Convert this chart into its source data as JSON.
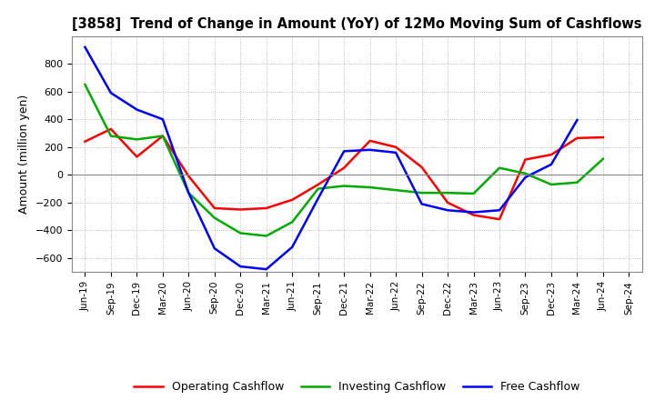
{
  "title": "[3858]  Trend of Change in Amount (YoY) of 12Mo Moving Sum of Cashflows",
  "ylabel": "Amount (million yen)",
  "x_labels": [
    "Jun-19",
    "Sep-19",
    "Dec-19",
    "Mar-20",
    "Jun-20",
    "Sep-20",
    "Dec-20",
    "Mar-21",
    "Jun-21",
    "Sep-21",
    "Dec-21",
    "Mar-22",
    "Jun-22",
    "Sep-22",
    "Dec-22",
    "Mar-23",
    "Jun-23",
    "Sep-23",
    "Dec-23",
    "Mar-24",
    "Jun-24",
    "Sep-24"
  ],
  "operating_cashflow": [
    240,
    330,
    130,
    280,
    -10,
    -240,
    -250,
    -240,
    -180,
    -70,
    50,
    245,
    200,
    55,
    -200,
    -290,
    -320,
    110,
    145,
    265,
    270,
    null
  ],
  "investing_cashflow": [
    650,
    280,
    255,
    280,
    -130,
    -310,
    -420,
    -440,
    -340,
    -100,
    -80,
    -90,
    -110,
    -130,
    -130,
    -135,
    50,
    10,
    -70,
    -55,
    115,
    null
  ],
  "free_cashflow": [
    920,
    590,
    470,
    400,
    -130,
    -530,
    -660,
    -680,
    -520,
    -170,
    170,
    180,
    160,
    -210,
    -255,
    -270,
    -255,
    -18,
    75,
    395,
    null,
    null
  ],
  "ylim": [
    -700,
    1000
  ],
  "yticks": [
    -600,
    -400,
    -200,
    0,
    200,
    400,
    600,
    800
  ],
  "line_colors": {
    "operating": "#ff0000",
    "investing": "#00aa00",
    "free": "#0000ff"
  },
  "background_color": "#ffffff",
  "grid_color": "#aaaaaa",
  "legend_labels": [
    "Operating Cashflow",
    "Investing Cashflow",
    "Free Cashflow"
  ]
}
